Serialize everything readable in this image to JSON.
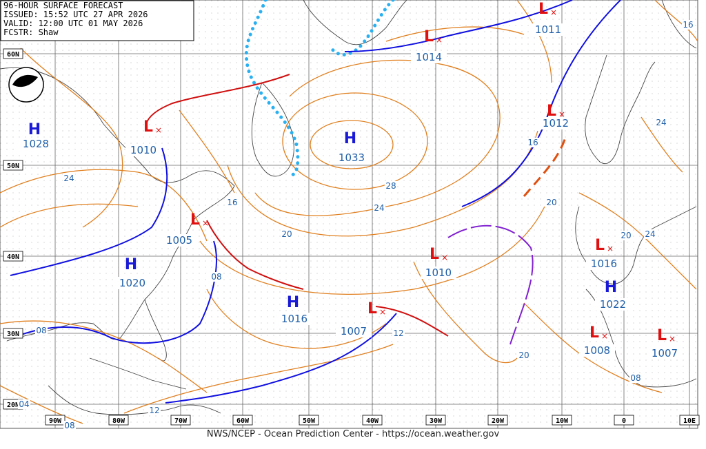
{
  "header": {
    "lines": [
      "96-HOUR SURFACE FORECAST",
      "ISSUED: 15:52 UTC 27 APR 2026",
      "VALID: 12:00 UTC 01 MAY 2026",
      "FCSTR: Shaw"
    ]
  },
  "grid": {
    "latitudes": [
      "60N",
      "50N",
      "40N",
      "30N",
      "20N"
    ],
    "longitudes": [
      "90W",
      "80W",
      "70W",
      "60W",
      "50W",
      "40W",
      "30W",
      "20W",
      "10W",
      "0",
      "10E"
    ]
  },
  "centers": [
    {
      "type": "H",
      "pressure": "1028"
    },
    {
      "type": "L",
      "pressure": "1010"
    },
    {
      "type": "L",
      "pressure": "1005"
    },
    {
      "type": "H",
      "pressure": "1020"
    },
    {
      "type": "H",
      "pressure": "1033"
    },
    {
      "type": "L",
      "pressure": "1014"
    },
    {
      "type": "L",
      "pressure": "1011"
    },
    {
      "type": "L",
      "pressure": "1012"
    },
    {
      "type": "L",
      "pressure": "1010"
    },
    {
      "type": "H",
      "pressure": "1016"
    },
    {
      "type": "L",
      "pressure": "1007"
    },
    {
      "type": "L",
      "pressure": "1016"
    },
    {
      "type": "H",
      "pressure": "1022"
    },
    {
      "type": "L",
      "pressure": "1008"
    },
    {
      "type": "L",
      "pressure": "1007"
    }
  ],
  "isobar_labels": [
    "24",
    "16",
    "28",
    "24",
    "20",
    "08",
    "16",
    "20",
    "24",
    "16",
    "20",
    "24",
    "12",
    "08",
    "20",
    "08",
    "04",
    "12",
    "08"
  ],
  "footer": "NWS/NCEP - Ocean Prediction Center - https://ocean.weather.gov"
}
